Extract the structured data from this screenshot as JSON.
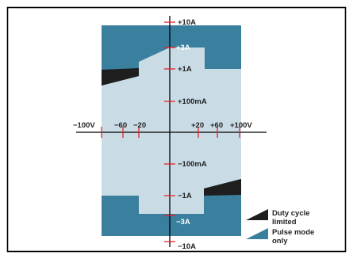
{
  "diagram": {
    "y_labels": {
      "p10A": "+10A",
      "p3A": "+3A",
      "p1A": "+1A",
      "p100mA": "+100mA",
      "m100mA": "−100mA",
      "m1A": "−1A",
      "m3A": "−3A",
      "m10A": "−10A"
    },
    "x_labels": {
      "m100V": "−100V",
      "m60": "−60",
      "m20": "−20",
      "p20": "+20",
      "p60": "+60",
      "p100V": "+100V"
    },
    "legend": {
      "duty_cycle_line1": "Duty cycle",
      "duty_cycle_line2": "limited",
      "pulse_line1": "Pulse mode",
      "pulse_line2": "only"
    },
    "colors": {
      "pulse_mode": "#3a7f9d",
      "dc_region": "#c9dce6",
      "duty_cycle": "#1e1e1e",
      "tick": "#e8202a",
      "axis": "#000000",
      "frame": "#000000"
    }
  }
}
